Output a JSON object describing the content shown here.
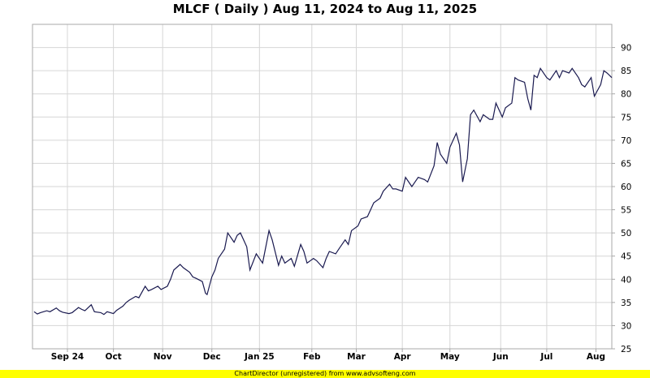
{
  "title": "MLCF ( Daily ) Aug 11, 2024 to Aug 11, 2025",
  "footer": "ChartDirector (unregistered) from www.advsofteng.com",
  "colors": {
    "line": "#1a1a50",
    "grid": "#d6d6d6",
    "plot_border": "#a8a8a8",
    "footer_bg": "#ffff00"
  },
  "chart_data": {
    "type": "line",
    "title": "MLCF ( Daily ) Aug 11, 2024 to Aug 11, 2025",
    "xlabel": "",
    "ylabel": "",
    "ylim": [
      25,
      95
    ],
    "y_ticks": [
      25,
      30,
      35,
      40,
      45,
      50,
      55,
      60,
      65,
      70,
      75,
      80,
      85,
      90
    ],
    "y_axis_side": "right",
    "grid": true,
    "x_range": [
      "2024-08-11",
      "2025-08-11"
    ],
    "x_ticks": [
      {
        "label": "Sep 24",
        "date": "2024-09-02"
      },
      {
        "label": "Oct",
        "date": "2024-10-01"
      },
      {
        "label": "Nov",
        "date": "2024-11-01"
      },
      {
        "label": "Dec",
        "date": "2024-12-02"
      },
      {
        "label": "Jan 25",
        "date": "2025-01-01"
      },
      {
        "label": "Feb",
        "date": "2025-02-03"
      },
      {
        "label": "Mar",
        "date": "2025-03-03"
      },
      {
        "label": "Apr",
        "date": "2025-04-01"
      },
      {
        "label": "May",
        "date": "2025-05-01"
      },
      {
        "label": "Jun",
        "date": "2025-06-02"
      },
      {
        "label": "Jul",
        "date": "2025-07-01"
      },
      {
        "label": "Aug",
        "date": "2025-08-01"
      }
    ],
    "series": [
      {
        "values": [
          [
            "2024-08-12",
            33.0
          ],
          [
            "2024-08-14",
            32.5
          ],
          [
            "2024-08-16",
            32.8
          ],
          [
            "2024-08-20",
            33.2
          ],
          [
            "2024-08-22",
            33.0
          ],
          [
            "2024-08-26",
            33.8
          ],
          [
            "2024-08-28",
            33.2
          ],
          [
            "2024-08-30",
            32.9
          ],
          [
            "2024-09-03",
            32.6
          ],
          [
            "2024-09-05",
            32.8
          ],
          [
            "2024-09-09",
            33.9
          ],
          [
            "2024-09-11",
            33.5
          ],
          [
            "2024-09-13",
            33.2
          ],
          [
            "2024-09-17",
            34.5
          ],
          [
            "2024-09-19",
            33.0
          ],
          [
            "2024-09-23",
            32.8
          ],
          [
            "2024-09-25",
            32.4
          ],
          [
            "2024-09-27",
            33.0
          ],
          [
            "2024-10-01",
            32.6
          ],
          [
            "2024-10-03",
            33.3
          ],
          [
            "2024-10-07",
            34.2
          ],
          [
            "2024-10-09",
            35.0
          ],
          [
            "2024-10-11",
            35.5
          ],
          [
            "2024-10-15",
            36.3
          ],
          [
            "2024-10-17",
            36.0
          ],
          [
            "2024-10-21",
            38.5
          ],
          [
            "2024-10-23",
            37.5
          ],
          [
            "2024-10-25",
            37.8
          ],
          [
            "2024-10-29",
            38.5
          ],
          [
            "2024-10-31",
            37.8
          ],
          [
            "2024-11-04",
            38.5
          ],
          [
            "2024-11-06",
            40.0
          ],
          [
            "2024-11-08",
            42.0
          ],
          [
            "2024-11-12",
            43.2
          ],
          [
            "2024-11-14",
            42.5
          ],
          [
            "2024-11-18",
            41.5
          ],
          [
            "2024-11-20",
            40.5
          ],
          [
            "2024-11-22",
            40.2
          ],
          [
            "2024-11-26",
            39.5
          ],
          [
            "2024-11-28",
            37.0
          ],
          [
            "2024-11-29",
            36.7
          ],
          [
            "2024-12-02",
            40.5
          ],
          [
            "2024-12-04",
            42.0
          ],
          [
            "2024-12-06",
            44.5
          ],
          [
            "2024-12-10",
            46.5
          ],
          [
            "2024-12-12",
            50.0
          ],
          [
            "2024-12-16",
            48.0
          ],
          [
            "2024-12-18",
            49.5
          ],
          [
            "2024-12-20",
            50.0
          ],
          [
            "2024-12-24",
            47.0
          ],
          [
            "2024-12-26",
            42.0
          ],
          [
            "2024-12-30",
            45.5
          ],
          [
            "2025-01-03",
            43.5
          ],
          [
            "2025-01-07",
            50.5
          ],
          [
            "2025-01-09",
            48.5
          ],
          [
            "2025-01-13",
            43.0
          ],
          [
            "2025-01-15",
            45.0
          ],
          [
            "2025-01-17",
            43.5
          ],
          [
            "2025-01-21",
            44.5
          ],
          [
            "2025-01-23",
            42.8
          ],
          [
            "2025-01-27",
            47.5
          ],
          [
            "2025-01-29",
            46.0
          ],
          [
            "2025-01-31",
            43.5
          ],
          [
            "2025-02-04",
            44.5
          ],
          [
            "2025-02-06",
            44.0
          ],
          [
            "2025-02-10",
            42.5
          ],
          [
            "2025-02-12",
            44.5
          ],
          [
            "2025-02-14",
            46.0
          ],
          [
            "2025-02-18",
            45.5
          ],
          [
            "2025-02-20",
            46.5
          ],
          [
            "2025-02-24",
            48.5
          ],
          [
            "2025-02-26",
            47.5
          ],
          [
            "2025-02-28",
            50.5
          ],
          [
            "2025-03-04",
            51.5
          ],
          [
            "2025-03-06",
            53.0
          ],
          [
            "2025-03-10",
            53.5
          ],
          [
            "2025-03-12",
            55.0
          ],
          [
            "2025-03-14",
            56.5
          ],
          [
            "2025-03-18",
            57.5
          ],
          [
            "2025-03-20",
            59.0
          ],
          [
            "2025-03-24",
            60.5
          ],
          [
            "2025-03-26",
            59.5
          ],
          [
            "2025-03-28",
            59.5
          ],
          [
            "2025-04-01",
            59.0
          ],
          [
            "2025-04-03",
            62.0
          ],
          [
            "2025-04-07",
            60.0
          ],
          [
            "2025-04-09",
            61.0
          ],
          [
            "2025-04-11",
            62.0
          ],
          [
            "2025-04-15",
            61.5
          ],
          [
            "2025-04-17",
            61.0
          ],
          [
            "2025-04-21",
            64.5
          ],
          [
            "2025-04-23",
            69.5
          ],
          [
            "2025-04-25",
            67.0
          ],
          [
            "2025-04-29",
            65.0
          ],
          [
            "2025-05-01",
            68.5
          ],
          [
            "2025-05-05",
            71.5
          ],
          [
            "2025-05-07",
            69.0
          ],
          [
            "2025-05-09",
            61.0
          ],
          [
            "2025-05-12",
            66.0
          ],
          [
            "2025-05-14",
            75.5
          ],
          [
            "2025-05-16",
            76.5
          ],
          [
            "2025-05-20",
            74.0
          ],
          [
            "2025-05-22",
            75.5
          ],
          [
            "2025-05-26",
            74.5
          ],
          [
            "2025-05-28",
            74.5
          ],
          [
            "2025-05-30",
            78.0
          ],
          [
            "2025-06-03",
            75.0
          ],
          [
            "2025-06-05",
            77.0
          ],
          [
            "2025-06-09",
            78.0
          ],
          [
            "2025-06-11",
            83.5
          ],
          [
            "2025-06-13",
            83.0
          ],
          [
            "2025-06-17",
            82.5
          ],
          [
            "2025-06-19",
            79.0
          ],
          [
            "2025-06-21",
            76.5
          ],
          [
            "2025-06-23",
            84.0
          ],
          [
            "2025-06-25",
            83.5
          ],
          [
            "2025-06-27",
            85.5
          ],
          [
            "2025-07-01",
            83.5
          ],
          [
            "2025-07-03",
            83.0
          ],
          [
            "2025-07-07",
            85.0
          ],
          [
            "2025-07-09",
            83.5
          ],
          [
            "2025-07-11",
            85.0
          ],
          [
            "2025-07-15",
            84.5
          ],
          [
            "2025-07-17",
            85.5
          ],
          [
            "2025-07-21",
            83.5
          ],
          [
            "2025-07-23",
            82.0
          ],
          [
            "2025-07-25",
            81.5
          ],
          [
            "2025-07-29",
            83.5
          ],
          [
            "2025-07-31",
            79.5
          ],
          [
            "2025-08-04",
            82.0
          ],
          [
            "2025-08-06",
            85.0
          ],
          [
            "2025-08-08",
            84.5
          ],
          [
            "2025-08-11",
            83.5
          ]
        ]
      }
    ]
  }
}
